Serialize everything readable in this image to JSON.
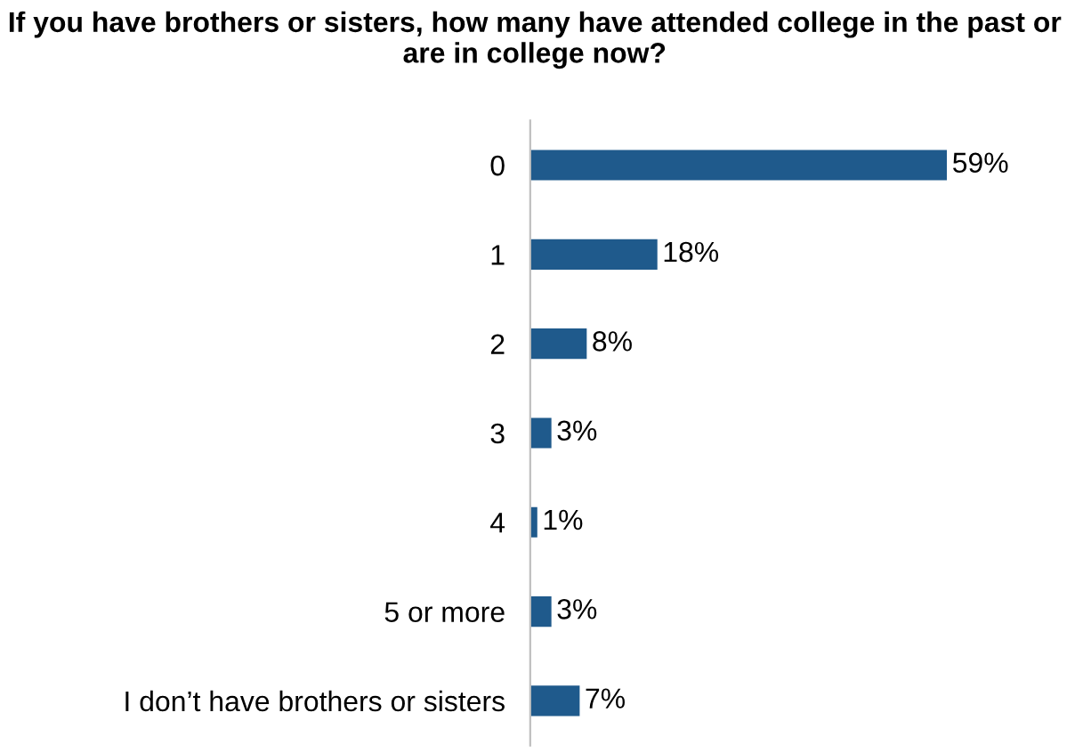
{
  "chart_data": {
    "type": "bar",
    "orientation": "horizontal",
    "title": "If you have brothers or sisters, how many have attended college in the past or are in college now?",
    "categories": [
      "0",
      "1",
      "2",
      "3",
      "4",
      "5 or more",
      "I don’t have brothers or sisters"
    ],
    "values": [
      59,
      18,
      8,
      3,
      1,
      3,
      7
    ],
    "value_labels": [
      "59%",
      "18%",
      "8%",
      "3%",
      "1%",
      "3%",
      "7%"
    ],
    "color": "#1f5a8c",
    "grid": false,
    "legend": false
  }
}
